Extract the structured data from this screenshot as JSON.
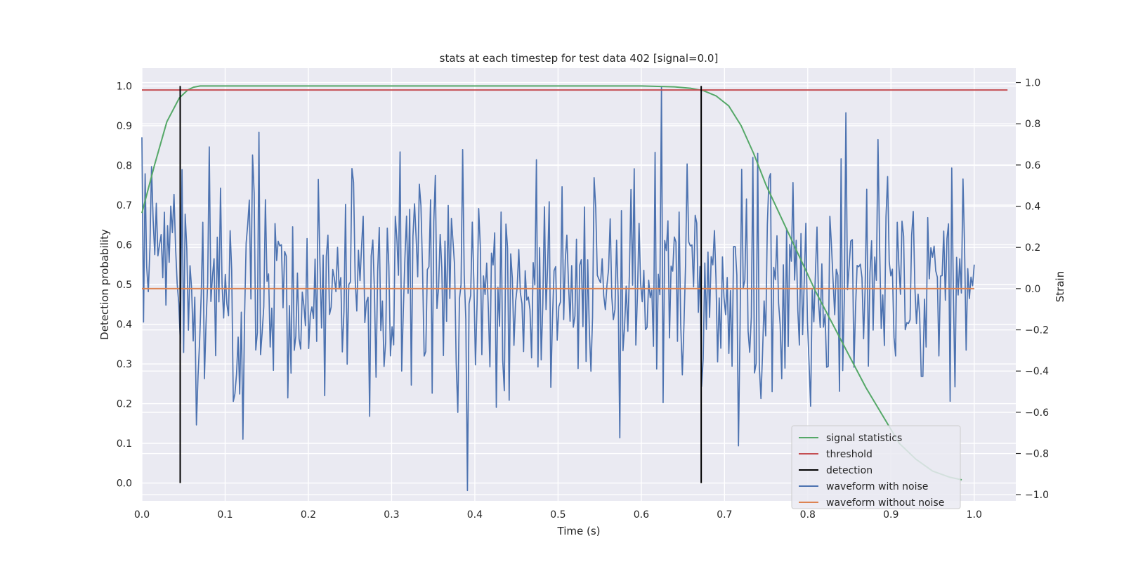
{
  "chart_data": {
    "type": "line",
    "title": "stats at each timestep for test data 402 [signal=0.0]",
    "xlabel": "Time (s)",
    "ylabel": "Detection probability",
    "y2label": "Strain",
    "xlim": [
      0.0,
      1.05
    ],
    "ylim": [
      -0.045,
      1.045
    ],
    "y2lim": [
      -1.03,
      1.07
    ],
    "xticks": [
      "0.0",
      "0.1",
      "0.2",
      "0.3",
      "0.4",
      "0.5",
      "0.6",
      "0.7",
      "0.8",
      "0.9",
      "1.0"
    ],
    "yticks": [
      "0.0",
      "0.1",
      "0.2",
      "0.3",
      "0.4",
      "0.5",
      "0.6",
      "0.7",
      "0.8",
      "0.9",
      "1.0"
    ],
    "y2ticks": [
      "−1.0",
      "−0.8",
      "−0.6",
      "−0.4",
      "−0.2",
      "0.0",
      "0.2",
      "0.4",
      "0.6",
      "0.8",
      "1.0"
    ],
    "grid": true,
    "legend_position": "lower-right",
    "series": [
      {
        "name": "signal statistics",
        "color": "#55a868",
        "axis": "left",
        "x": [
          0.0,
          0.015,
          0.03,
          0.045,
          0.055,
          0.062,
          0.07,
          0.1,
          0.2,
          0.3,
          0.4,
          0.5,
          0.6,
          0.64,
          0.66,
          0.675,
          0.69,
          0.705,
          0.72,
          0.735,
          0.75,
          0.77,
          0.79,
          0.81,
          0.83,
          0.85,
          0.87,
          0.89,
          0.91,
          0.93,
          0.95,
          0.97,
          0.985
        ],
        "y": [
          0.68,
          0.8,
          0.91,
          0.97,
          0.99,
          0.997,
          1.0,
          1.0,
          1.0,
          1.0,
          1.0,
          1.0,
          1.0,
          0.998,
          0.994,
          0.988,
          0.975,
          0.95,
          0.9,
          0.83,
          0.75,
          0.66,
          0.57,
          0.48,
          0.4,
          0.32,
          0.24,
          0.17,
          0.1,
          0.06,
          0.03,
          0.015,
          0.008
        ]
      },
      {
        "name": "threshold",
        "color": "#c44e52",
        "axis": "left",
        "x": [
          0.0,
          1.04
        ],
        "y": [
          0.99,
          0.99
        ]
      },
      {
        "name": "detection",
        "color": "#000000",
        "axis": "left",
        "segments": [
          {
            "x": 0.046,
            "y": [
              0.0,
              1.0
            ]
          },
          {
            "x": 0.672,
            "y": [
              0.0,
              1.0
            ]
          }
        ]
      },
      {
        "name": "waveform with noise",
        "color": "#4c72b0",
        "axis": "right",
        "x_range": [
          0.0,
          1.0
        ],
        "points": 520,
        "seed": 402,
        "std": 0.3,
        "min": -0.98,
        "max": 1.0
      },
      {
        "name": "waveform without noise",
        "color": "#dd8452",
        "axis": "right",
        "x": [
          0.0,
          1.0
        ],
        "y": [
          0.0,
          0.0
        ]
      }
    ]
  }
}
